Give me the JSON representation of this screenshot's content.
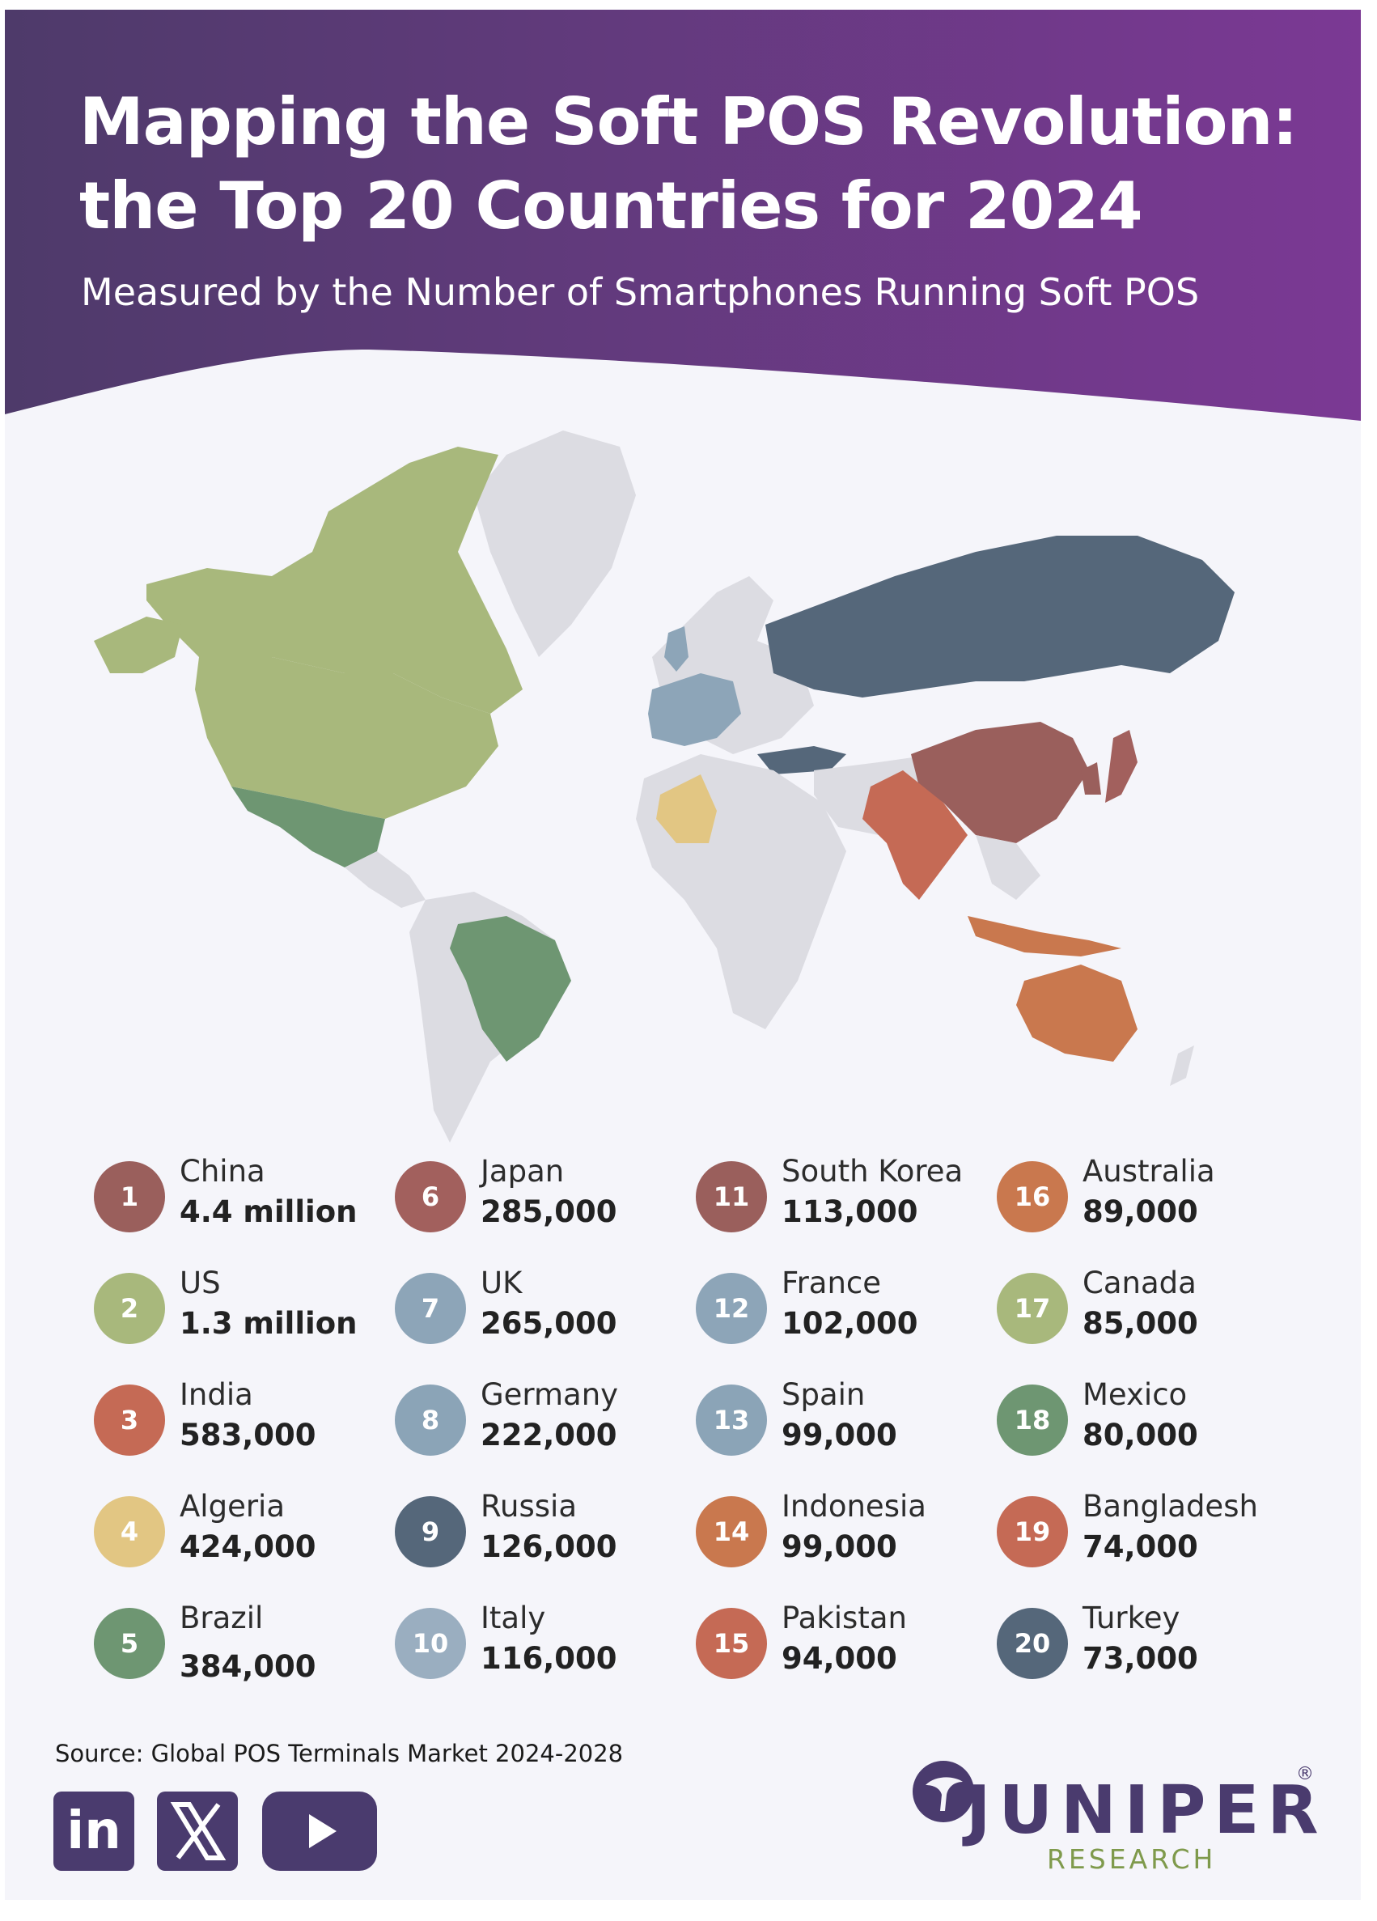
{
  "header": {
    "title_line1": "Mapping the Soft POS Revolution:",
    "title_line2": "the Top 20 Countries for 2024",
    "subtitle": "Measured by the Number of Smartphones Running Soft POS"
  },
  "colors": {
    "header_gradient_start": "#4e3a6a",
    "header_gradient_end": "#7b3994",
    "background": "#f5f5fa",
    "land_default": "#dcdce2",
    "brand_purple": "#4a3b6e",
    "brand_green": "#7f9a4c"
  },
  "rankings": [
    {
      "rank": "1",
      "country": "China",
      "value": "4.4 million",
      "color": "#9a5f5c"
    },
    {
      "rank": "2",
      "country": "US",
      "value": "1.3 million",
      "color": "#a8b87c"
    },
    {
      "rank": "3",
      "country": "India",
      "value": "583,000",
      "color": "#c56a55"
    },
    {
      "rank": "4",
      "country": "Algeria",
      "value": "424,000",
      "color": "#e2c683"
    },
    {
      "rank": "5",
      "country": "Brazil",
      "value": "384,000",
      "color": "#6e9672"
    },
    {
      "rank": "6",
      "country": "Japan",
      "value": "285,000",
      "color": "#a2605d"
    },
    {
      "rank": "7",
      "country": "UK",
      "value": "265,000",
      "color": "#8da5b8"
    },
    {
      "rank": "8",
      "country": "Germany",
      "value": "222,000",
      "color": "#8ba4b7"
    },
    {
      "rank": "9",
      "country": "Russia",
      "value": "126,000",
      "color": "#55677a"
    },
    {
      "rank": "10",
      "country": "Italy",
      "value": "116,000",
      "color": "#9aaec0"
    },
    {
      "rank": "11",
      "country": "South Korea",
      "value": "113,000",
      "color": "#9a5f5c"
    },
    {
      "rank": "12",
      "country": "France",
      "value": "102,000",
      "color": "#8da5b8"
    },
    {
      "rank": "13",
      "country": "Spain",
      "value": "99,000",
      "color": "#8ba4b7"
    },
    {
      "rank": "14",
      "country": "Indonesia",
      "value": "99,000",
      "color": "#c9784e"
    },
    {
      "rank": "15",
      "country": "Pakistan",
      "value": "94,000",
      "color": "#c56a55"
    },
    {
      "rank": "16",
      "country": "Australia",
      "value": "89,000",
      "color": "#c9784e"
    },
    {
      "rank": "17",
      "country": "Canada",
      "value": "85,000",
      "color": "#a8b87c"
    },
    {
      "rank": "18",
      "country": "Mexico",
      "value": "80,000",
      "color": "#6e9672"
    },
    {
      "rank": "19",
      "country": "Bangladesh",
      "value": "74,000",
      "color": "#c56a55"
    },
    {
      "rank": "20",
      "country": "Turkey",
      "value": "73,000",
      "color": "#55677a"
    }
  ],
  "footer": {
    "source": "Source: Global POS Terminals Market 2024-2028",
    "social_icons": [
      "linkedin-icon",
      "x-icon",
      "youtube-icon"
    ],
    "linkedin_text": "in",
    "brand_name": "JUNIPER",
    "brand_sub": "RESEARCH",
    "registered": "®"
  }
}
